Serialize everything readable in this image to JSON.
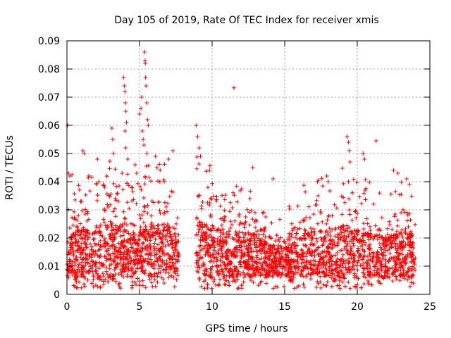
{
  "chart_data": {
    "type": "scatter",
    "title": "Day 105 of 2019, Rate Of TEC Index for receiver xmis",
    "xlabel": "GPS time / hours",
    "ylabel": "ROTI / TECUs",
    "xlim": [
      0,
      25
    ],
    "ylim": [
      0,
      0.09
    ],
    "xticks": [
      "0",
      "5",
      "10",
      "15",
      "20",
      "25"
    ],
    "yticks": [
      "0",
      "0.01",
      "0.02",
      "0.03",
      "0.04",
      "0.05",
      "0.06",
      "0.07",
      "0.08",
      "0.09"
    ],
    "grid": true,
    "marker": "+",
    "color": "#ff0000",
    "data_gap_hours": [
      7.7,
      8.9
    ],
    "series": [
      {
        "points": [
          [
            0.05,
            0.06
          ],
          [
            0.1,
            0.043
          ],
          [
            0.2,
            0.042
          ],
          [
            0.35,
            0.0425
          ],
          [
            1.1,
            0.051
          ],
          [
            1.2,
            0.05
          ],
          [
            2.1,
            0.048
          ],
          [
            2.2,
            0.04
          ],
          [
            2.6,
            0.038
          ],
          [
            3.1,
            0.059
          ],
          [
            3.15,
            0.055
          ],
          [
            3.2,
            0.05
          ],
          [
            3.9,
            0.077
          ],
          [
            3.95,
            0.074
          ],
          [
            4.0,
            0.072
          ],
          [
            4.02,
            0.068
          ],
          [
            4.05,
            0.065
          ],
          [
            4.1,
            0.061
          ],
          [
            4.0,
            0.058
          ],
          [
            4.05,
            0.052
          ],
          [
            3.8,
            0.043
          ],
          [
            4.2,
            0.048
          ],
          [
            4.7,
            0.046
          ],
          [
            4.8,
            0.043
          ],
          [
            5.0,
            0.064
          ],
          [
            5.1,
            0.066
          ],
          [
            5.15,
            0.07
          ],
          [
            5.2,
            0.058
          ],
          [
            5.25,
            0.055
          ],
          [
            5.3,
            0.053
          ],
          [
            5.35,
            0.086
          ],
          [
            5.38,
            0.083
          ],
          [
            5.4,
            0.082
          ],
          [
            5.42,
            0.077
          ],
          [
            5.45,
            0.074
          ],
          [
            5.5,
            0.068
          ],
          [
            5.55,
            0.062
          ],
          [
            5.6,
            0.06
          ],
          [
            5.5,
            0.05
          ],
          [
            6.1,
            0.049
          ],
          [
            6.2,
            0.045
          ],
          [
            6.4,
            0.04
          ],
          [
            7.0,
            0.048
          ],
          [
            7.3,
            0.051
          ],
          [
            8.9,
            0.06
          ],
          [
            9.0,
            0.056
          ],
          [
            9.1,
            0.052
          ],
          [
            9.2,
            0.049
          ],
          [
            11.5,
            0.0733
          ],
          [
            12.8,
            0.045
          ],
          [
            14.2,
            0.041
          ],
          [
            17.9,
            0.042
          ],
          [
            18.0,
            0.04
          ],
          [
            19.3,
            0.056
          ],
          [
            19.4,
            0.054
          ],
          [
            19.45,
            0.051
          ],
          [
            19.5,
            0.047
          ],
          [
            20.4,
            0.05
          ],
          [
            20.5,
            0.048
          ],
          [
            21.3,
            0.0545
          ],
          [
            22.5,
            0.044
          ],
          [
            22.8,
            0.043
          ],
          [
            23.4,
            0.041
          ],
          [
            23.6,
            0.039
          ]
        ],
        "bulk": {
          "x_range": [
            0,
            24
          ],
          "typical_y_range": [
            0.005,
            0.03
          ],
          "min_y": 0.002
        }
      }
    ]
  }
}
